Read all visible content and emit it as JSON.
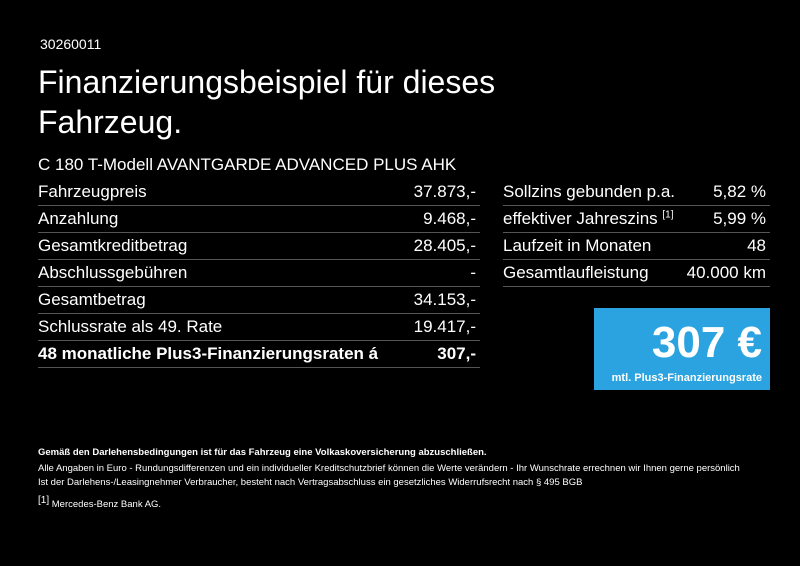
{
  "header": {
    "id": "30260011",
    "title": "Finanzierungsbeispiel für dieses Fahrzeug."
  },
  "model": "C 180 T-Modell AVANTGARDE ADVANCED PLUS AHK",
  "left_table": {
    "rows": [
      [
        "Fahrzeugpreis",
        "37.873,-"
      ],
      [
        "Anzahlung",
        "9.468,-"
      ],
      [
        "Gesamtkreditbetrag",
        "28.405,-"
      ],
      [
        "Abschlussgebühren",
        "-"
      ],
      [
        "Gesamtbetrag",
        "34.153,-"
      ],
      [
        "Schlussrate als 49. Rate",
        "19.417,-"
      ],
      [
        "48 monatliche Plus3-Finanzierungsraten á",
        "307,-"
      ]
    ]
  },
  "right_table": {
    "rows": [
      {
        "label": "Sollzins gebunden p.a.",
        "value": "5,82 %"
      },
      {
        "label": "effektiver Jahreszins",
        "note": "[1]",
        "value": "5,99 %"
      },
      {
        "label": "Laufzeit in Monaten",
        "value": "48"
      },
      {
        "label": "Gesamtlaufleistung",
        "value": "40.000 km"
      }
    ]
  },
  "rate_box": {
    "amount": "307 €",
    "caption": "mtl. Plus3-Finanzierungsrate"
  },
  "footer": {
    "notice": "Gemäß den Darlehensbedingungen ist für das Fahrzeug eine Volkaskoversicherung abzuschließen.",
    "lines": [
      "Alle Angaben in Euro - Rundungsdifferenzen und ein individueller Kreditschutzbrief können die Werte verändern - Ihr Wunschrate errechnen wir Ihnen gerne persönlich",
      "Ist der Darlehens-/Leasingnehmer Verbraucher, besteht nach Vertragsabschluss ein gesetzliches Widerrufsrecht nach § 495 BGB"
    ],
    "footnote": {
      "marker": "[1]",
      "text": "Mercedes-Benz Bank AG."
    }
  }
}
